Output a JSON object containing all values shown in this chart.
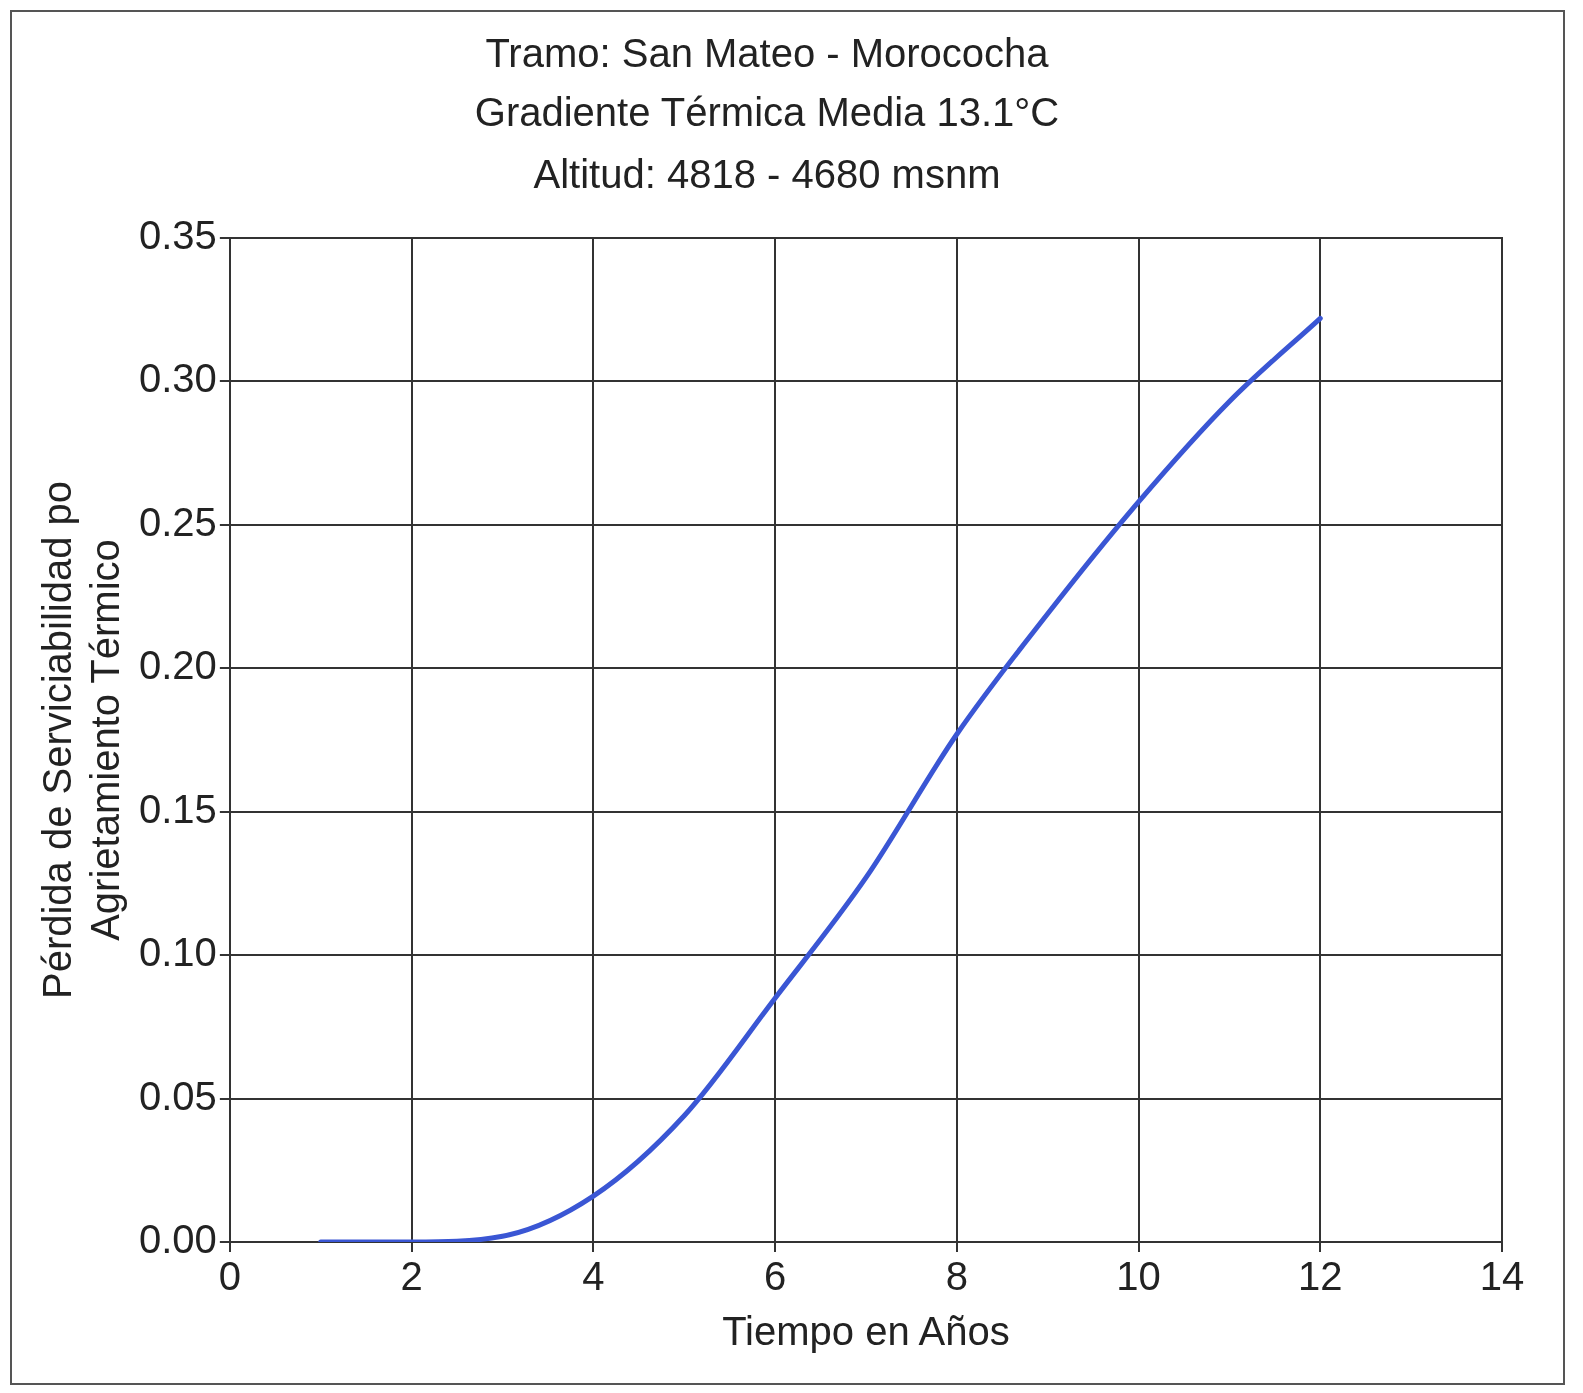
{
  "chart_data": {
    "type": "line",
    "title": "Tramo: San Mateo - Morococha",
    "subtitle": "Gradiente Térmica Media 13.1°C\nAltitud: 4818 - 4680 msnm",
    "xlabel": "Tiempo en Años",
    "ylabel": "Pérdida de Serviciabilidad po\nAgrietamiento Térmico",
    "x": [
      1,
      2,
      3,
      4,
      5,
      6,
      7,
      8,
      9,
      10,
      11,
      12
    ],
    "series": [
      {
        "color": "#3a56d4",
        "values": [
          0.0,
          0.0,
          0.002,
          0.016,
          0.044,
          0.085,
          0.127,
          0.177,
          0.219,
          0.258,
          0.293,
          0.322
        ]
      }
    ],
    "xlim": [
      0,
      14
    ],
    "xticks": [
      0,
      2,
      4,
      6,
      8,
      10,
      12,
      14
    ],
    "ylim": [
      0,
      0.35
    ],
    "yticks": [
      {
        "value": 0,
        "label": "0.00"
      },
      {
        "value": 0.05,
        "label": "0.05"
      },
      {
        "value": 0.1,
        "label": "0.10"
      },
      {
        "value": 0.15,
        "label": "0.15"
      },
      {
        "value": 0.2,
        "label": "0.20"
      },
      {
        "value": 0.25,
        "label": "0.25"
      },
      {
        "value": 0.3,
        "label": "0.30"
      },
      {
        "value": 0.35,
        "label": "0.35"
      }
    ],
    "grid": true,
    "marker": "none",
    "line_style": "solid"
  }
}
